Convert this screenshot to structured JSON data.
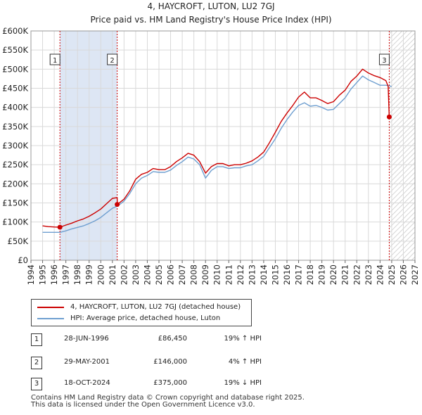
{
  "chart_data": {
    "type": "line",
    "title": "4, HAYCROFT, LUTON, LU2 7GJ",
    "subtitle": "Price paid vs. HM Land Registry's House Price Index (HPI)",
    "xlim": [
      1994,
      2027
    ],
    "ylim": [
      0,
      600000
    ],
    "x_ticks": [
      "1994",
      "1995",
      "1996",
      "1997",
      "1998",
      "1999",
      "2000",
      "2001",
      "2002",
      "2003",
      "2004",
      "2005",
      "2006",
      "2007",
      "2008",
      "2009",
      "2010",
      "2011",
      "2012",
      "2013",
      "2014",
      "2015",
      "2016",
      "2017",
      "2018",
      "2019",
      "2020",
      "2021",
      "2022",
      "2023",
      "2024",
      "2025",
      "2026",
      "2027"
    ],
    "y_ticks": [
      {
        "value": 0,
        "label": "£0"
      },
      {
        "value": 50000,
        "label": "£50K"
      },
      {
        "value": 100000,
        "label": "£100K"
      },
      {
        "value": 150000,
        "label": "£150K"
      },
      {
        "value": 200000,
        "label": "£200K"
      },
      {
        "value": 250000,
        "label": "£250K"
      },
      {
        "value": 300000,
        "label": "£300K"
      },
      {
        "value": 350000,
        "label": "£350K"
      },
      {
        "value": 400000,
        "label": "£400K"
      },
      {
        "value": 450000,
        "label": "£450K"
      },
      {
        "value": 500000,
        "label": "£500K"
      },
      {
        "value": 550000,
        "label": "£550K"
      },
      {
        "value": 600000,
        "label": "£600K"
      }
    ],
    "grid": true,
    "shaded_regions": [
      {
        "from": 1996.49,
        "to": 2001.41,
        "color": "#dde6f4"
      }
    ],
    "future_hatch_from": 2024.79,
    "series": [
      {
        "name": "4, HAYCROFT, LUTON, LU2 7GJ (detached house)",
        "color": "#cc0000",
        "x": [
          1995.0,
          1995.5,
          1996.0,
          1996.49,
          1997.0,
          1997.5,
          1998.0,
          1998.5,
          1999.0,
          1999.5,
          2000.0,
          2000.5,
          2001.0,
          2001.41,
          2001.42,
          2002.0,
          2002.5,
          2003.0,
          2003.5,
          2004.0,
          2004.5,
          2005.0,
          2005.5,
          2006.0,
          2006.5,
          2007.0,
          2007.5,
          2008.0,
          2008.5,
          2009.0,
          2009.5,
          2010.0,
          2010.5,
          2011.0,
          2011.5,
          2012.0,
          2012.5,
          2013.0,
          2013.5,
          2014.0,
          2014.5,
          2015.0,
          2015.5,
          2016.0,
          2016.5,
          2017.0,
          2017.5,
          2018.0,
          2018.5,
          2019.0,
          2019.5,
          2020.0,
          2020.5,
          2021.0,
          2021.5,
          2022.0,
          2022.5,
          2023.0,
          2023.5,
          2024.0,
          2024.5,
          2024.7,
          2024.79
        ],
        "values": [
          90000,
          88000,
          87000,
          86450,
          92000,
          97000,
          103000,
          108000,
          115000,
          124000,
          134000,
          148000,
          162000,
          164000,
          146000,
          160000,
          182000,
          212000,
          225000,
          230000,
          240000,
          237000,
          237000,
          245000,
          258000,
          268000,
          280000,
          275000,
          258000,
          228000,
          245000,
          253000,
          253000,
          247000,
          250000,
          250000,
          254000,
          260000,
          270000,
          283000,
          308000,
          335000,
          363000,
          385000,
          405000,
          427000,
          440000,
          425000,
          425000,
          418000,
          410000,
          415000,
          432000,
          445000,
          468000,
          482000,
          500000,
          490000,
          483000,
          478000,
          470000,
          455000,
          375000
        ]
      },
      {
        "name": "HPI: Average price, detached house, Luton",
        "color": "#6f9fd0",
        "x": [
          1995.0,
          1995.5,
          1996.0,
          1996.5,
          1997.0,
          1997.5,
          1998.0,
          1998.5,
          1999.0,
          1999.5,
          2000.0,
          2000.5,
          2001.0,
          2001.5,
          2002.0,
          2002.5,
          2003.0,
          2003.5,
          2004.0,
          2004.5,
          2005.0,
          2005.5,
          2006.0,
          2006.5,
          2007.0,
          2007.5,
          2008.0,
          2008.5,
          2009.0,
          2009.5,
          2010.0,
          2010.5,
          2011.0,
          2011.5,
          2012.0,
          2012.5,
          2013.0,
          2013.5,
          2014.0,
          2014.5,
          2015.0,
          2015.5,
          2016.0,
          2016.5,
          2017.0,
          2017.5,
          2018.0,
          2018.5,
          2019.0,
          2019.5,
          2020.0,
          2020.5,
          2021.0,
          2021.5,
          2022.0,
          2022.5,
          2023.0,
          2023.5,
          2024.0,
          2024.5,
          2025.0
        ],
        "values": [
          73000,
          73000,
          73000,
          73000,
          77000,
          82000,
          86000,
          90000,
          96000,
          103000,
          112000,
          124000,
          136000,
          143000,
          155000,
          175000,
          200000,
          215000,
          222000,
          232000,
          230000,
          230000,
          236000,
          248000,
          258000,
          270000,
          265000,
          250000,
          215000,
          235000,
          245000,
          245000,
          240000,
          242000,
          242000,
          247000,
          250000,
          260000,
          272000,
          295000,
          318000,
          345000,
          368000,
          388000,
          405000,
          412000,
          403000,
          405000,
          400000,
          393000,
          395000,
          410000,
          425000,
          448000,
          465000,
          482000,
          472000,
          465000,
          458000,
          458000,
          455000
        ]
      }
    ],
    "annotations": [
      {
        "label": "1",
        "x": 1996.49,
        "y": 86450
      },
      {
        "label": "2",
        "x": 2001.41,
        "y": 146000
      },
      {
        "label": "3",
        "x": 2024.79,
        "y": 375000
      }
    ]
  },
  "legend": {
    "property_label": "4, HAYCROFT, LUTON, LU2 7GJ (detached house)",
    "hpi_label": "HPI: Average price, detached house, Luton"
  },
  "sales": [
    {
      "num": "1",
      "date": "28-JUN-1996",
      "price": "£86,450",
      "hpi": "19% ↑ HPI"
    },
    {
      "num": "2",
      "date": "29-MAY-2001",
      "price": "£146,000",
      "hpi": "4% ↑ HPI"
    },
    {
      "num": "3",
      "date": "18-OCT-2024",
      "price": "£375,000",
      "hpi": "19% ↓ HPI"
    }
  ],
  "footer": {
    "line1": "Contains HM Land Registry data © Crown copyright and database right 2025.",
    "line2": "This data is licensed under the Open Government Licence v3.0."
  }
}
